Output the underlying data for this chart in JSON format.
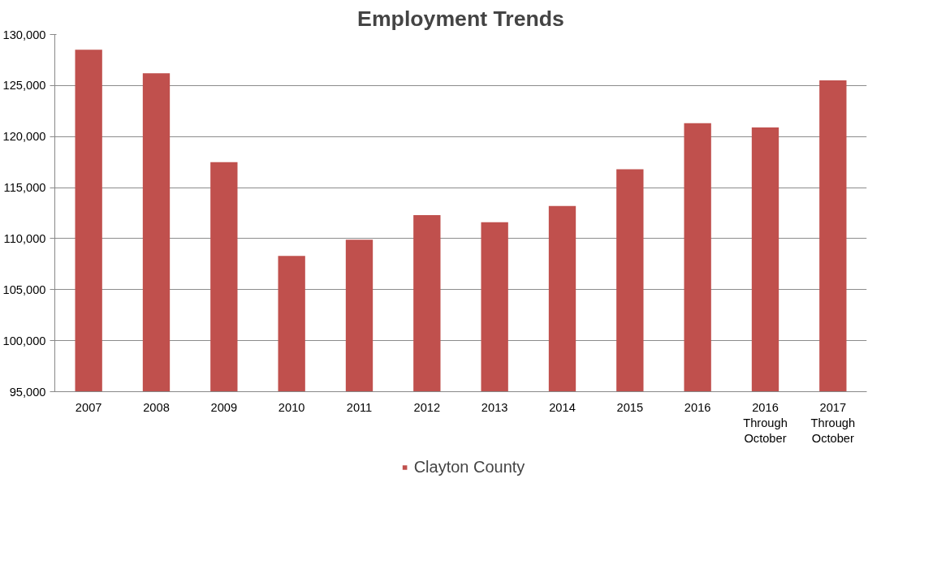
{
  "chart_data": {
    "type": "bar",
    "title": "Employment Trends",
    "categories": [
      "2007",
      "2008",
      "2009",
      "2010",
      "2011",
      "2012",
      "2013",
      "2014",
      "2015",
      "2016",
      "2016\nThrough\nOctober",
      "2017\nThrough\nOctober"
    ],
    "series": [
      {
        "name": "Clayton County",
        "color": "#c0504d",
        "values": [
          128500,
          126200,
          117500,
          108300,
          109900,
          112300,
          111600,
          113200,
          116800,
          121300,
          120900,
          125500
        ]
      }
    ],
    "ylim": [
      95000,
      130000
    ],
    "yticks": [
      {
        "value": 95000,
        "label": "95,000"
      },
      {
        "value": 100000,
        "label": "100,000"
      },
      {
        "value": 105000,
        "label": "105,000"
      },
      {
        "value": 110000,
        "label": "110,000"
      },
      {
        "value": 115000,
        "label": "115,000"
      },
      {
        "value": 120000,
        "label": "120,000"
      },
      {
        "value": 125000,
        "label": "125,000"
      },
      {
        "value": 130000,
        "label": "130,000"
      }
    ],
    "grid": "y",
    "legend": "bottom"
  }
}
